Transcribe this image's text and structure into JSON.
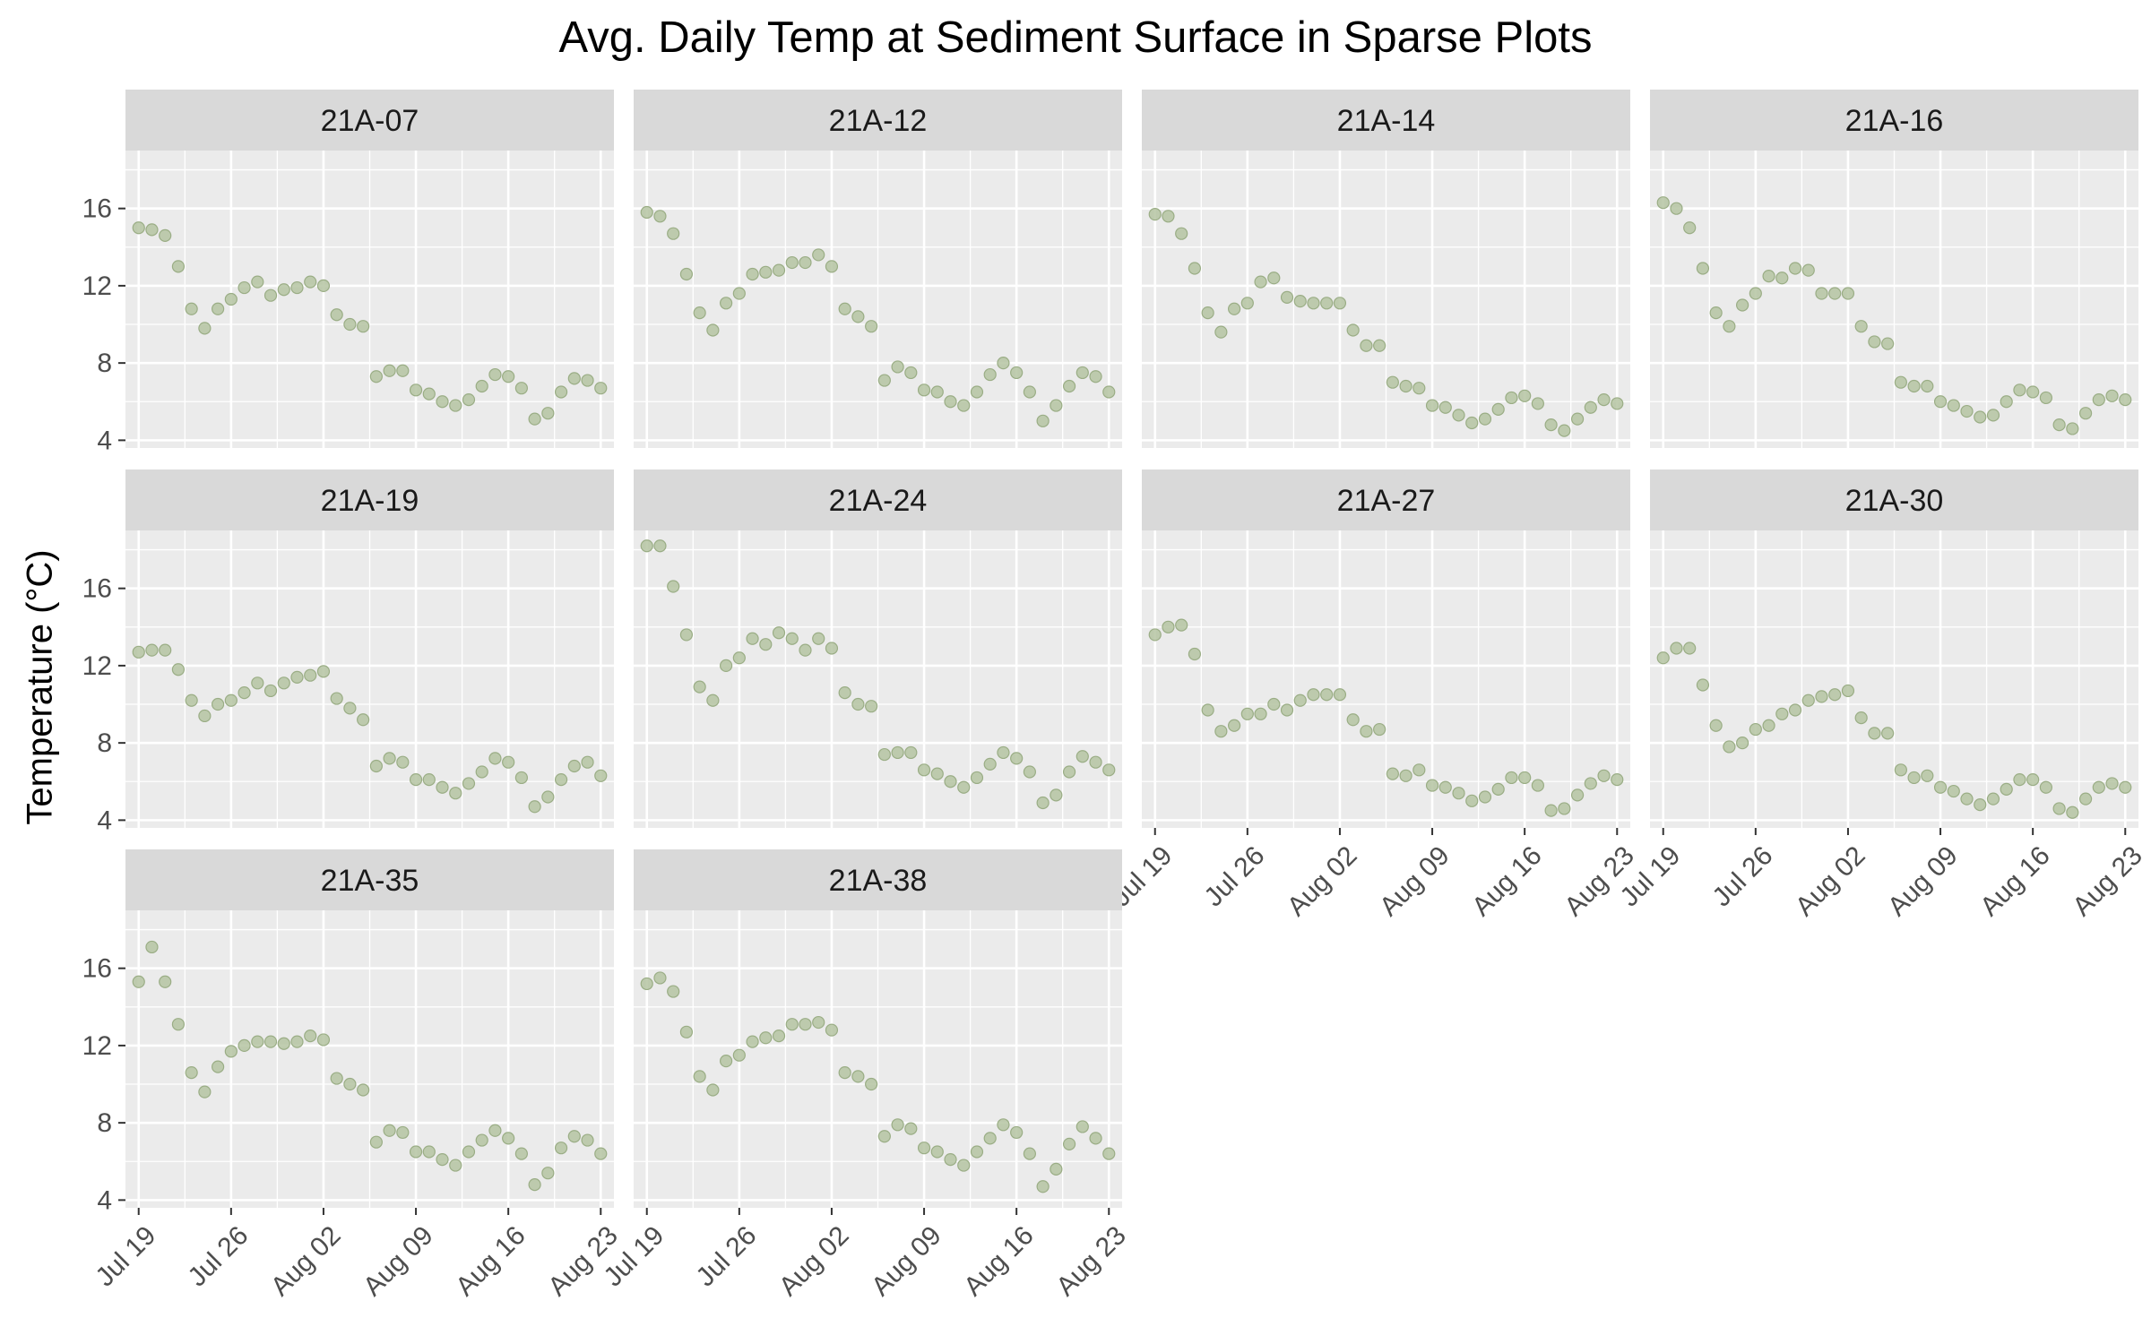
{
  "chart_data": {
    "type": "scatter",
    "title": "Avg. Daily Temp at Sediment Surface in Sparse Plots",
    "xlabel": "",
    "ylabel": "Temperature (°C)",
    "ylim": [
      3.6,
      19.0
    ],
    "xlim": [
      "2021-07-18",
      "2021-08-24"
    ],
    "y_ticks": [
      4,
      8,
      12,
      16
    ],
    "x_ticks": [
      "2021-07-19",
      "2021-07-26",
      "2021-08-02",
      "2021-08-09",
      "2021-08-16",
      "2021-08-23"
    ],
    "x_tick_labels": [
      "Jul 19",
      "Jul 26",
      "Aug 02",
      "Aug 09",
      "Aug 16",
      "Aug 23"
    ],
    "grid": true,
    "point_color": "#b5c4a2",
    "panel_background": "#ebebeb",
    "strip_background": "#d9d9d9",
    "x_start": "2021-07-19",
    "panels": [
      {
        "name": "21A-07",
        "values": [
          15.0,
          14.9,
          14.6,
          13.0,
          10.8,
          9.8,
          10.8,
          11.3,
          11.9,
          12.2,
          11.5,
          11.8,
          11.9,
          12.2,
          12.0,
          10.5,
          10.0,
          9.9,
          7.3,
          7.6,
          7.6,
          6.6,
          6.4,
          6.0,
          5.8,
          6.1,
          6.8,
          7.4,
          7.3,
          6.7,
          5.1,
          5.4,
          6.5,
          7.2,
          7.1,
          6.7
        ]
      },
      {
        "name": "21A-12",
        "values": [
          15.8,
          15.6,
          14.7,
          12.6,
          10.6,
          9.7,
          11.1,
          11.6,
          12.6,
          12.7,
          12.8,
          13.2,
          13.2,
          13.6,
          13.0,
          10.8,
          10.4,
          9.9,
          7.1,
          7.8,
          7.5,
          6.6,
          6.5,
          6.0,
          5.8,
          6.5,
          7.4,
          8.0,
          7.5,
          6.5,
          5.0,
          5.8,
          6.8,
          7.5,
          7.3,
          6.5
        ]
      },
      {
        "name": "21A-14",
        "values": [
          15.7,
          15.6,
          14.7,
          12.9,
          10.6,
          9.6,
          10.8,
          11.1,
          12.2,
          12.4,
          11.4,
          11.2,
          11.1,
          11.1,
          11.1,
          9.7,
          8.9,
          8.9,
          7.0,
          6.8,
          6.7,
          5.8,
          5.7,
          5.3,
          4.9,
          5.1,
          5.6,
          6.2,
          6.3,
          5.9,
          4.8,
          4.5,
          5.1,
          5.7,
          6.1,
          5.9
        ]
      },
      {
        "name": "21A-16",
        "values": [
          16.3,
          16.0,
          15.0,
          12.9,
          10.6,
          9.9,
          11.0,
          11.6,
          12.5,
          12.4,
          12.9,
          12.8,
          11.6,
          11.6,
          11.6,
          9.9,
          9.1,
          9.0,
          7.0,
          6.8,
          6.8,
          6.0,
          5.8,
          5.5,
          5.2,
          5.3,
          6.0,
          6.6,
          6.5,
          6.2,
          4.8,
          4.6,
          5.4,
          6.1,
          6.3,
          6.1
        ]
      },
      {
        "name": "21A-19",
        "values": [
          12.7,
          12.8,
          12.8,
          11.8,
          10.2,
          9.4,
          10.0,
          10.2,
          10.6,
          11.1,
          10.7,
          11.1,
          11.4,
          11.5,
          11.7,
          10.3,
          9.8,
          9.2,
          6.8,
          7.2,
          7.0,
          6.1,
          6.1,
          5.7,
          5.4,
          5.9,
          6.5,
          7.2,
          7.0,
          6.2,
          4.7,
          5.2,
          6.1,
          6.8,
          7.0,
          6.3
        ]
      },
      {
        "name": "21A-24",
        "values": [
          18.2,
          18.2,
          16.1,
          13.6,
          10.9,
          10.2,
          12.0,
          12.4,
          13.4,
          13.1,
          13.7,
          13.4,
          12.8,
          13.4,
          12.9,
          10.6,
          10.0,
          9.9,
          7.4,
          7.5,
          7.5,
          6.6,
          6.4,
          6.0,
          5.7,
          6.2,
          6.9,
          7.5,
          7.2,
          6.5,
          4.9,
          5.3,
          6.5,
          7.3,
          7.0,
          6.6
        ]
      },
      {
        "name": "21A-27",
        "values": [
          13.6,
          14.0,
          14.1,
          12.6,
          9.7,
          8.6,
          8.9,
          9.5,
          9.5,
          10.0,
          9.7,
          10.2,
          10.5,
          10.5,
          10.5,
          9.2,
          8.6,
          8.7,
          6.4,
          6.3,
          6.6,
          5.8,
          5.7,
          5.4,
          5.0,
          5.2,
          5.6,
          6.2,
          6.2,
          5.8,
          4.5,
          4.6,
          5.3,
          5.9,
          6.3,
          6.1
        ]
      },
      {
        "name": "21A-30",
        "values": [
          12.4,
          12.9,
          12.9,
          11.0,
          8.9,
          7.8,
          8.0,
          8.7,
          8.9,
          9.5,
          9.7,
          10.2,
          10.4,
          10.5,
          10.7,
          9.3,
          8.5,
          8.5,
          6.6,
          6.2,
          6.3,
          5.7,
          5.5,
          5.1,
          4.8,
          5.1,
          5.6,
          6.1,
          6.1,
          5.7,
          4.6,
          4.4,
          5.1,
          5.7,
          5.9,
          5.7
        ]
      },
      {
        "name": "21A-35",
        "values": [
          15.3,
          17.1,
          15.3,
          13.1,
          10.6,
          9.6,
          10.9,
          11.7,
          12.0,
          12.2,
          12.2,
          12.1,
          12.2,
          12.5,
          12.3,
          10.3,
          10.0,
          9.7,
          7.0,
          7.6,
          7.5,
          6.5,
          6.5,
          6.1,
          5.8,
          6.5,
          7.1,
          7.6,
          7.2,
          6.4,
          4.8,
          5.4,
          6.7,
          7.3,
          7.1,
          6.4
        ]
      },
      {
        "name": "21A-38",
        "values": [
          15.2,
          15.5,
          14.8,
          12.7,
          10.4,
          9.7,
          11.2,
          11.5,
          12.2,
          12.4,
          12.5,
          13.1,
          13.1,
          13.2,
          12.8,
          10.6,
          10.4,
          10.0,
          7.3,
          7.9,
          7.7,
          6.7,
          6.5,
          6.1,
          5.8,
          6.5,
          7.2,
          7.9,
          7.5,
          6.4,
          4.7,
          5.6,
          6.9,
          7.8,
          7.2,
          6.4
        ]
      }
    ]
  }
}
